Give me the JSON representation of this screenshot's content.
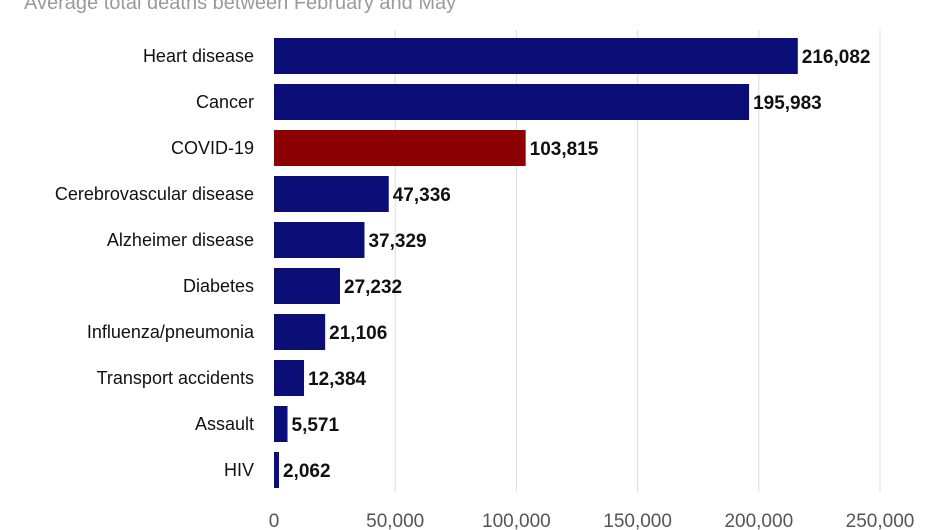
{
  "chart_data": {
    "type": "bar",
    "orientation": "horizontal",
    "subtitle": "Average total deaths between February and May",
    "categories": [
      "Heart disease",
      "Cancer",
      "COVID-19",
      "Cerebrovascular disease",
      "Alzheimer disease",
      "Diabetes",
      "Influenza/pneumonia",
      "Transport accidents",
      "Assault",
      "HIV"
    ],
    "values": [
      216082,
      195983,
      103815,
      47336,
      37329,
      27232,
      21106,
      12384,
      5571,
      2062
    ],
    "value_labels": [
      "216,082",
      "195,983",
      "103,815",
      "47,336",
      "37,329",
      "27,232",
      "21,106",
      "12,384",
      "5,571",
      "2,062"
    ],
    "bar_colors": [
      "#0c0e78",
      "#0c0e78",
      "#8b0000",
      "#0c0e78",
      "#0c0e78",
      "#0c0e78",
      "#0c0e78",
      "#0c0e78",
      "#0c0e78",
      "#0c0e78"
    ],
    "xlim": [
      0,
      250000
    ],
    "xticks": [
      0,
      50000,
      100000,
      150000,
      200000,
      250000
    ],
    "xtick_labels": [
      "0",
      "50,000",
      "100,000",
      "150,000",
      "200,000",
      "250,000"
    ],
    "grid": true
  }
}
